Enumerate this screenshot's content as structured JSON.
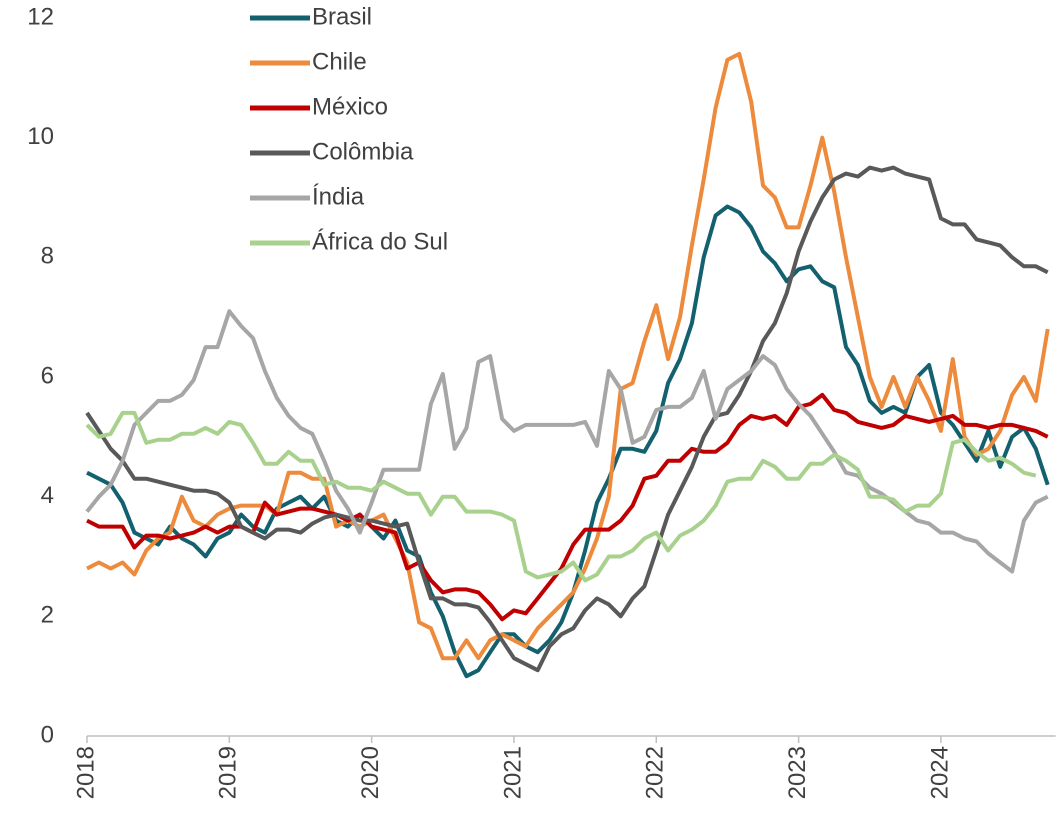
{
  "chart_data": {
    "type": "line",
    "categories": [
      "2018",
      null,
      null,
      null,
      null,
      null,
      null,
      null,
      null,
      null,
      null,
      null,
      "2019",
      null,
      null,
      null,
      null,
      null,
      null,
      null,
      null,
      null,
      null,
      null,
      "2020",
      null,
      null,
      null,
      null,
      null,
      null,
      null,
      null,
      null,
      null,
      null,
      "2021",
      null,
      null,
      null,
      null,
      null,
      null,
      null,
      null,
      null,
      null,
      null,
      "2022",
      null,
      null,
      null,
      null,
      null,
      null,
      null,
      null,
      null,
      null,
      null,
      "2023",
      null,
      null,
      null,
      null,
      null,
      null,
      null,
      null,
      null,
      null,
      null,
      "2024",
      null,
      null,
      null,
      null,
      null,
      null,
      null,
      null,
      null
    ],
    "series": [
      {
        "name": "Brasil",
        "color": "#13606f",
        "values": [
          4.4,
          4.3,
          4.2,
          3.9,
          3.4,
          3.3,
          3.2,
          3.5,
          3.3,
          3.2,
          3.0,
          3.3,
          3.4,
          3.7,
          3.5,
          3.4,
          3.8,
          3.9,
          4.0,
          3.8,
          4.0,
          3.6,
          3.5,
          3.7,
          3.5,
          3.3,
          3.6,
          3.1,
          3.0,
          2.4,
          2.0,
          1.4,
          1.0,
          1.1,
          1.4,
          1.7,
          1.7,
          1.5,
          1.4,
          1.6,
          1.9,
          2.4,
          3.1,
          3.9,
          4.3,
          4.8,
          4.8,
          4.75,
          5.1,
          5.9,
          6.3,
          6.9,
          8.0,
          8.7,
          8.85,
          8.75,
          8.5,
          8.1,
          7.9,
          7.6,
          7.8,
          7.85,
          7.6,
          7.5,
          6.5,
          6.2,
          5.6,
          5.4,
          5.5,
          5.4,
          6.0,
          6.2,
          5.4,
          5.2,
          4.9,
          4.6,
          5.1,
          4.5,
          5.0,
          5.15,
          4.8,
          4.2
        ]
      },
      {
        "name": "Chile",
        "color": "#ed8a3b",
        "values": [
          2.8,
          2.9,
          2.8,
          2.9,
          2.7,
          3.1,
          3.3,
          3.4,
          4.0,
          3.6,
          3.5,
          3.7,
          3.8,
          3.85,
          3.85,
          3.85,
          3.7,
          4.4,
          4.4,
          4.3,
          4.3,
          3.5,
          3.6,
          3.5,
          3.6,
          3.7,
          3.3,
          2.9,
          1.9,
          1.8,
          1.3,
          1.3,
          1.6,
          1.3,
          1.6,
          1.7,
          1.6,
          1.5,
          1.8,
          2.0,
          2.2,
          2.4,
          2.8,
          3.3,
          4.0,
          5.8,
          5.9,
          6.6,
          7.2,
          6.3,
          7.0,
          8.2,
          9.3,
          10.5,
          11.3,
          11.4,
          10.6,
          9.2,
          9.0,
          8.5,
          8.5,
          9.2,
          10.0,
          9.1,
          8.0,
          7.0,
          6.0,
          5.5,
          6.0,
          5.5,
          6.0,
          5.6,
          5.1,
          6.3,
          5.0,
          4.7,
          4.8,
          5.1,
          5.7,
          6.0,
          5.6,
          6.8
        ]
      },
      {
        "name": "México",
        "color": "#c00000",
        "values": [
          3.6,
          3.5,
          3.5,
          3.5,
          3.15,
          3.35,
          3.35,
          3.3,
          3.35,
          3.4,
          3.5,
          3.4,
          3.5,
          3.5,
          3.4,
          3.9,
          3.7,
          3.75,
          3.8,
          3.8,
          3.75,
          3.7,
          3.6,
          3.7,
          3.5,
          3.45,
          3.4,
          2.8,
          2.9,
          2.6,
          2.4,
          2.45,
          2.45,
          2.4,
          2.2,
          1.95,
          2.1,
          2.05,
          2.3,
          2.55,
          2.8,
          3.2,
          3.45,
          3.45,
          3.45,
          3.6,
          3.85,
          4.3,
          4.35,
          4.6,
          4.6,
          4.8,
          4.75,
          4.75,
          4.9,
          5.2,
          5.35,
          5.3,
          5.35,
          5.2,
          5.5,
          5.55,
          5.7,
          5.45,
          5.4,
          5.25,
          5.2,
          5.15,
          5.2,
          5.35,
          5.3,
          5.25,
          5.3,
          5.35,
          5.2,
          5.2,
          5.15,
          5.2,
          5.2,
          5.15,
          5.1,
          5.0
        ]
      },
      {
        "name": "Colômbia",
        "color": "#595959",
        "values": [
          5.4,
          5.1,
          4.8,
          4.6,
          4.3,
          4.3,
          4.25,
          4.2,
          4.15,
          4.1,
          4.1,
          4.05,
          3.9,
          3.5,
          3.4,
          3.3,
          3.45,
          3.45,
          3.4,
          3.55,
          3.65,
          3.7,
          3.65,
          3.6,
          3.6,
          3.55,
          3.5,
          3.55,
          2.9,
          2.3,
          2.3,
          2.2,
          2.2,
          2.15,
          1.9,
          1.6,
          1.3,
          1.2,
          1.1,
          1.5,
          1.7,
          1.8,
          2.1,
          2.3,
          2.2,
          2.0,
          2.3,
          2.5,
          3.1,
          3.7,
          4.1,
          4.5,
          5.0,
          5.35,
          5.4,
          5.7,
          6.1,
          6.6,
          6.9,
          7.4,
          8.1,
          8.6,
          9.0,
          9.3,
          9.4,
          9.35,
          9.5,
          9.45,
          9.5,
          9.4,
          9.35,
          9.3,
          8.65,
          8.55,
          8.55,
          8.3,
          8.25,
          8.2,
          8.0,
          7.85,
          7.85,
          7.75
        ]
      },
      {
        "name": "Índia",
        "color": "#a6a6a6",
        "values": [
          3.75,
          4.0,
          4.2,
          4.6,
          5.2,
          5.4,
          5.6,
          5.6,
          5.7,
          5.95,
          6.5,
          6.5,
          7.1,
          6.85,
          6.65,
          6.1,
          5.65,
          5.35,
          5.15,
          5.05,
          4.6,
          4.1,
          3.8,
          3.4,
          3.9,
          4.45,
          4.45,
          4.45,
          4.45,
          5.55,
          6.05,
          4.8,
          5.15,
          6.25,
          6.35,
          5.3,
          5.1,
          5.2,
          5.2,
          5.2,
          5.2,
          5.2,
          5.25,
          4.85,
          6.1,
          5.8,
          4.9,
          5.0,
          5.45,
          5.5,
          5.5,
          5.65,
          6.1,
          5.3,
          5.8,
          5.95,
          6.1,
          6.35,
          6.2,
          5.8,
          5.55,
          5.35,
          5.05,
          4.75,
          4.4,
          4.35,
          4.15,
          4.05,
          3.9,
          3.75,
          3.6,
          3.55,
          3.4,
          3.4,
          3.3,
          3.25,
          3.05,
          2.9,
          2.75,
          3.6,
          3.9,
          4.0
        ]
      },
      {
        "name": "África do Sul",
        "color": "#a9d18e",
        "values": [
          5.2,
          5.0,
          5.05,
          5.4,
          5.4,
          4.9,
          4.95,
          4.95,
          5.05,
          5.05,
          5.15,
          5.05,
          5.25,
          5.2,
          4.9,
          4.55,
          4.55,
          4.75,
          4.6,
          4.6,
          4.2,
          4.25,
          4.15,
          4.15,
          4.1,
          4.25,
          4.15,
          4.05,
          4.05,
          3.7,
          4.0,
          4.0,
          3.75,
          3.75,
          3.75,
          3.7,
          3.6,
          2.75,
          2.65,
          2.7,
          2.75,
          2.9,
          2.6,
          2.7,
          3.0,
          3.0,
          3.1,
          3.3,
          3.4,
          3.1,
          3.35,
          3.45,
          3.6,
          3.85,
          4.25,
          4.3,
          4.3,
          4.6,
          4.5,
          4.3,
          4.3,
          4.55,
          4.55,
          4.7,
          4.6,
          4.45,
          4.0,
          4.0,
          3.95,
          3.75,
          3.85,
          3.85,
          4.05,
          4.9,
          4.95,
          4.75,
          4.6,
          4.65,
          4.55,
          4.4,
          4.35,
          null
        ]
      }
    ],
    "ylim": [
      0,
      12
    ],
    "yticks": [
      0,
      2,
      4,
      6,
      8,
      10,
      12
    ],
    "grid": false,
    "legend": "upper left"
  }
}
